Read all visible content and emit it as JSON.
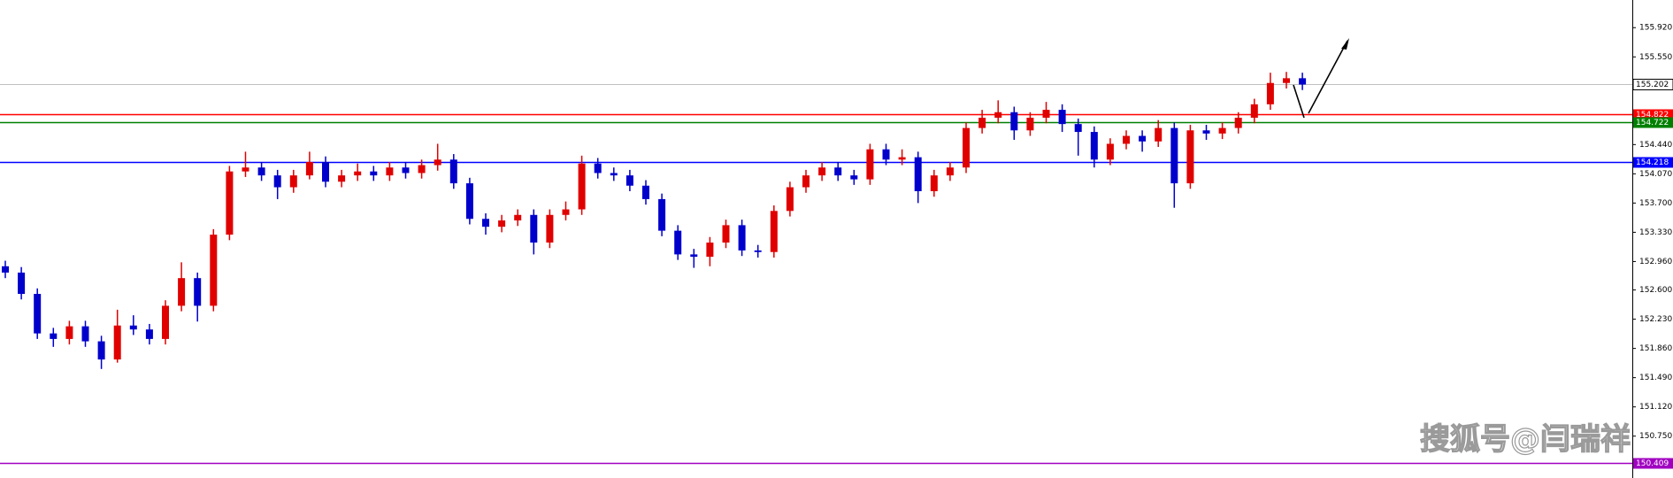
{
  "chart_data": {
    "type": "candlestick",
    "up_color": "#e00000",
    "down_color": "#0000cc",
    "ylim": [
      150.22,
      156.27
    ],
    "yticks": [
      {
        "value": 150.75,
        "label": "150.750"
      },
      {
        "value": 151.12,
        "label": "151.120"
      },
      {
        "value": 151.49,
        "label": "151.490"
      },
      {
        "value": 151.86,
        "label": "151.860"
      },
      {
        "value": 152.23,
        "label": "152.230"
      },
      {
        "value": 152.6,
        "label": "152.600"
      },
      {
        "value": 152.96,
        "label": "152.960"
      },
      {
        "value": 153.33,
        "label": "153.330"
      },
      {
        "value": 153.7,
        "label": "153.700"
      },
      {
        "value": 154.07,
        "label": "154.070"
      },
      {
        "value": 154.44,
        "label": "154.440"
      },
      {
        "value": 155.55,
        "label": "155.550"
      },
      {
        "value": 155.92,
        "label": "155.920"
      }
    ],
    "levels": [
      {
        "value": 155.202,
        "color": "#c0c0c0"
      },
      {
        "value": 154.822,
        "color": "#ff0000"
      },
      {
        "value": 154.722,
        "color": "#008000"
      },
      {
        "value": 154.218,
        "color": "#0000ff"
      },
      {
        "value": 150.409,
        "color": "#a000c0"
      }
    ],
    "open": [
      152.9,
      152.82,
      152.55,
      152.05,
      151.98,
      152.14,
      151.95,
      151.72,
      152.15,
      152.1,
      151.98,
      152.4,
      152.75,
      152.4,
      153.3,
      154.1,
      154.15,
      154.05,
      153.9,
      154.05,
      154.22,
      153.97,
      154.05,
      154.1,
      154.05,
      154.15,
      154.08,
      154.18,
      154.25,
      153.95,
      153.5,
      153.4,
      153.48,
      153.55,
      153.2,
      153.55,
      153.62,
      154.2,
      154.08,
      154.05,
      153.92,
      153.75,
      153.35,
      153.05,
      153.02,
      153.2,
      153.42,
      153.1,
      153.08,
      153.6,
      153.9,
      154.05,
      154.15,
      154.05,
      154.0,
      154.38,
      154.25,
      154.28,
      153.85,
      154.05,
      154.15,
      154.65,
      154.78,
      154.85,
      154.62,
      154.78,
      154.88,
      154.7,
      154.6,
      154.25,
      154.45,
      154.55,
      154.48,
      154.65,
      153.95,
      154.62,
      154.58,
      154.65,
      154.78,
      154.95,
      155.22,
      155.28
    ],
    "high": [
      152.97,
      152.89,
      152.62,
      152.12,
      152.21,
      152.21,
      152.02,
      152.35,
      152.28,
      152.17,
      152.47,
      152.95,
      152.82,
      153.37,
      154.17,
      154.35,
      154.22,
      154.12,
      154.12,
      154.35,
      154.29,
      154.12,
      154.2,
      154.17,
      154.22,
      154.22,
      154.25,
      154.45,
      154.32,
      154.02,
      153.57,
      153.55,
      153.62,
      153.62,
      153.62,
      153.72,
      154.3,
      154.27,
      154.15,
      154.12,
      153.99,
      153.82,
      153.42,
      153.12,
      153.27,
      153.49,
      153.49,
      153.17,
      153.67,
      153.97,
      154.12,
      154.22,
      154.22,
      154.12,
      154.45,
      154.45,
      154.38,
      154.35,
      154.12,
      154.22,
      154.72,
      154.88,
      155.0,
      154.92,
      154.85,
      154.98,
      154.95,
      154.77,
      154.67,
      154.52,
      154.62,
      154.62,
      154.75,
      154.72,
      154.69,
      154.69,
      154.72,
      154.85,
      155.02,
      155.35,
      155.36,
      155.35
    ],
    "low": [
      152.75,
      152.48,
      151.98,
      151.88,
      151.91,
      151.88,
      151.6,
      151.68,
      152.03,
      151.91,
      151.91,
      152.33,
      152.2,
      152.33,
      153.23,
      154.03,
      153.98,
      153.75,
      153.83,
      154.0,
      153.9,
      153.9,
      153.98,
      153.98,
      153.98,
      154.01,
      154.01,
      154.11,
      153.88,
      153.43,
      153.3,
      153.33,
      153.41,
      153.05,
      153.13,
      153.48,
      153.55,
      154.01,
      153.98,
      153.85,
      153.68,
      153.28,
      152.98,
      152.88,
      152.9,
      153.13,
      153.03,
      153.01,
      153.01,
      153.53,
      153.83,
      153.98,
      153.98,
      153.93,
      153.93,
      154.18,
      154.18,
      153.7,
      153.78,
      153.98,
      154.08,
      154.58,
      154.71,
      154.5,
      154.55,
      154.71,
      154.6,
      154.3,
      154.15,
      154.18,
      154.38,
      154.35,
      154.41,
      153.64,
      153.88,
      154.5,
      154.51,
      154.58,
      154.71,
      154.88,
      155.15,
      155.13
    ],
    "close": [
      152.82,
      152.55,
      152.05,
      151.98,
      152.14,
      151.95,
      151.72,
      152.15,
      152.1,
      151.98,
      152.4,
      152.75,
      152.4,
      153.3,
      154.1,
      154.15,
      154.05,
      153.9,
      154.05,
      154.22,
      153.97,
      154.05,
      154.1,
      154.05,
      154.15,
      154.08,
      154.18,
      154.25,
      153.95,
      153.5,
      153.4,
      153.48,
      153.55,
      153.2,
      153.55,
      153.62,
      154.2,
      154.08,
      154.05,
      153.92,
      153.75,
      153.35,
      153.05,
      153.02,
      153.2,
      153.42,
      153.1,
      153.08,
      153.6,
      153.9,
      154.05,
      154.15,
      154.05,
      154.0,
      154.38,
      154.25,
      154.28,
      153.85,
      154.05,
      154.15,
      154.65,
      154.78,
      154.85,
      154.62,
      154.78,
      154.88,
      154.7,
      154.6,
      154.25,
      154.45,
      154.55,
      154.48,
      154.65,
      153.95,
      154.62,
      154.58,
      154.65,
      154.78,
      154.95,
      155.22,
      155.28,
      155.2
    ],
    "watermark": "搜狐号@闫瑞祥"
  }
}
